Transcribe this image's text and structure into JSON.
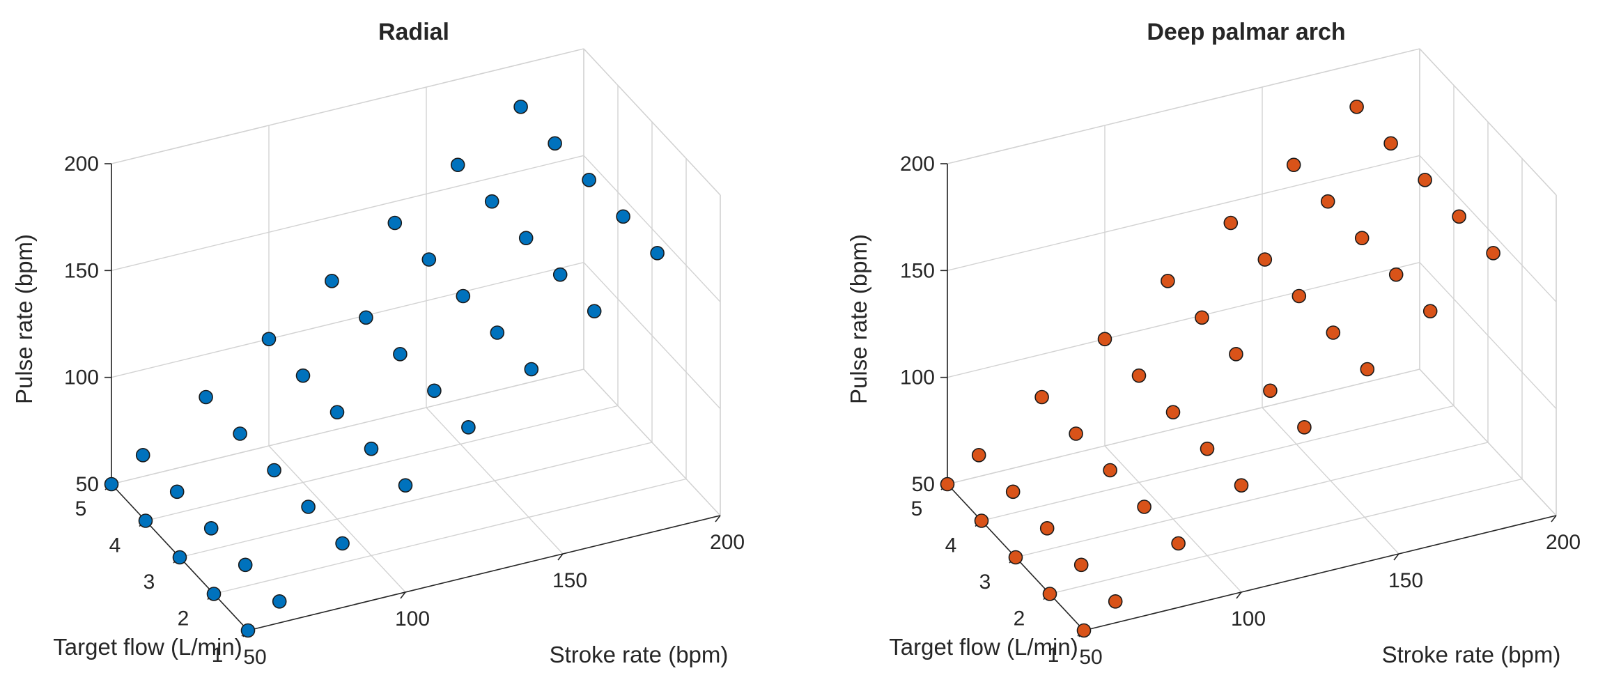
{
  "chart_data": [
    {
      "type": "scatter",
      "title": "Radial",
      "xlabel": "Stroke rate (bpm)",
      "ylabel": "Target flow (L/min)",
      "zlabel": "Pulse rate (bpm)",
      "xlim": [
        50,
        200
      ],
      "ylim": [
        1,
        5
      ],
      "zlim": [
        50,
        200
      ],
      "x_ticks": [
        50,
        100,
        150,
        200
      ],
      "y_ticks": [
        1,
        2,
        3,
        4,
        5
      ],
      "z_ticks": [
        50,
        100,
        150,
        200
      ],
      "marker_color": "#0072BD",
      "series": [
        {
          "name": "1 L/min",
          "y": 1,
          "x": [
            50,
            60,
            80,
            100,
            120,
            140,
            160,
            180
          ],
          "z": [
            50,
            60,
            80,
            100,
            120,
            140,
            160,
            180
          ]
        },
        {
          "name": "2 L/min",
          "y": 2,
          "x": [
            50,
            60,
            80,
            100,
            120,
            140,
            160,
            180
          ],
          "z": [
            50,
            60,
            80,
            100,
            120,
            140,
            160,
            180
          ]
        },
        {
          "name": "3 L/min",
          "y": 3,
          "x": [
            50,
            60,
            80,
            100,
            120,
            140,
            160,
            180
          ],
          "z": [
            50,
            60,
            80,
            100,
            120,
            140,
            160,
            180
          ]
        },
        {
          "name": "4 L/min",
          "y": 4,
          "x": [
            50,
            60,
            80,
            100,
            120,
            140,
            160,
            180
          ],
          "z": [
            50,
            60,
            80,
            100,
            120,
            140,
            160,
            180
          ]
        },
        {
          "name": "5 L/min",
          "y": 5,
          "x": [
            50,
            60,
            80,
            100,
            120,
            140,
            160,
            180
          ],
          "z": [
            50,
            60,
            80,
            100,
            120,
            140,
            160,
            180
          ]
        }
      ]
    },
    {
      "type": "scatter",
      "title": "Deep palmar arch",
      "xlabel": "Stroke rate (bpm)",
      "ylabel": "Target flow (L/min)",
      "zlabel": "Pulse rate (bpm)",
      "xlim": [
        50,
        200
      ],
      "ylim": [
        1,
        5
      ],
      "zlim": [
        50,
        200
      ],
      "x_ticks": [
        50,
        100,
        150,
        200
      ],
      "y_ticks": [
        1,
        2,
        3,
        4,
        5
      ],
      "z_ticks": [
        50,
        100,
        150,
        200
      ],
      "marker_color": "#D95319",
      "series": [
        {
          "name": "1 L/min",
          "y": 1,
          "x": [
            50,
            60,
            80,
            100,
            120,
            140,
            160,
            180
          ],
          "z": [
            50,
            60,
            80,
            100,
            120,
            140,
            160,
            180
          ]
        },
        {
          "name": "2 L/min",
          "y": 2,
          "x": [
            50,
            60,
            80,
            100,
            120,
            140,
            160,
            180
          ],
          "z": [
            50,
            60,
            80,
            100,
            120,
            140,
            160,
            180
          ]
        },
        {
          "name": "3 L/min",
          "y": 3,
          "x": [
            50,
            60,
            80,
            100,
            120,
            140,
            160,
            180
          ],
          "z": [
            50,
            60,
            80,
            100,
            120,
            140,
            160,
            180
          ]
        },
        {
          "name": "4 L/min",
          "y": 4,
          "x": [
            50,
            60,
            80,
            100,
            120,
            140,
            160,
            180
          ],
          "z": [
            50,
            60,
            80,
            100,
            120,
            140,
            160,
            180
          ]
        },
        {
          "name": "5 L/min",
          "y": 5,
          "x": [
            50,
            60,
            80,
            100,
            120,
            140,
            160,
            180
          ],
          "z": [
            50,
            60,
            80,
            100,
            120,
            140,
            160,
            180
          ]
        }
      ]
    }
  ]
}
